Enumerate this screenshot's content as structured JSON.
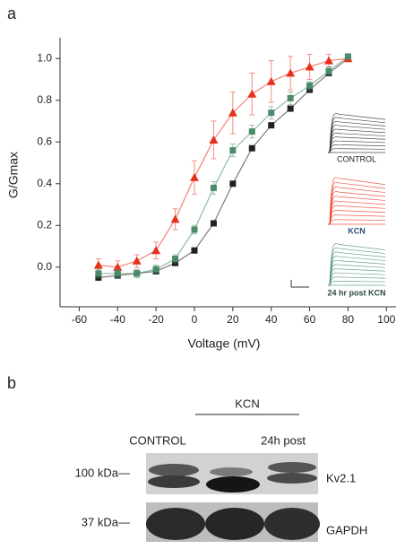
{
  "panel_a_label": "a",
  "chart_data": {
    "type": "line",
    "x_label": "Voltage (mV)",
    "y_label": "G/Gmax",
    "x": [
      -50,
      -40,
      -30,
      -20,
      -10,
      0,
      10,
      20,
      30,
      40,
      50,
      60,
      70,
      80
    ],
    "series": [
      {
        "name": "CONTROL",
        "color": "#222222",
        "marker": "square",
        "values": [
          -0.05,
          -0.04,
          -0.03,
          -0.02,
          0.02,
          0.08,
          0.21,
          0.4,
          0.57,
          0.68,
          0.76,
          0.85,
          0.93,
          1.0
        ],
        "errors": [
          0.01,
          0.01,
          0.01,
          0.01,
          0.01,
          0.01,
          0.01,
          0.01,
          0.01,
          0.01,
          0.01,
          0.01,
          0.01,
          0.01
        ]
      },
      {
        "name": "KCN",
        "color": "#e8301c",
        "marker": "triangle",
        "values": [
          0.01,
          0.0,
          0.03,
          0.08,
          0.23,
          0.43,
          0.61,
          0.74,
          0.83,
          0.89,
          0.93,
          0.96,
          0.99,
          1.0
        ],
        "errors": [
          0.03,
          0.03,
          0.03,
          0.04,
          0.05,
          0.08,
          0.09,
          0.1,
          0.1,
          0.1,
          0.08,
          0.06,
          0.03,
          0.01
        ]
      },
      {
        "name": "24 hr post KCN",
        "color": "#4a8c6a",
        "marker": "square",
        "values": [
          -0.03,
          -0.03,
          -0.03,
          -0.01,
          0.04,
          0.18,
          0.38,
          0.56,
          0.65,
          0.74,
          0.81,
          0.87,
          0.94,
          1.01
        ],
        "errors": [
          0.02,
          0.02,
          0.02,
          0.02,
          0.02,
          0.02,
          0.03,
          0.03,
          0.03,
          0.03,
          0.03,
          0.02,
          0.02,
          0.01
        ]
      }
    ],
    "xlim": [
      -70,
      105
    ],
    "xticks": [
      -60,
      -40,
      -20,
      0,
      20,
      40,
      60,
      80,
      100
    ],
    "ylim": [
      -0.19,
      1.1
    ],
    "yticks": [
      {
        "value": 0,
        "label": "0.0"
      },
      0.2,
      0.4,
      0.6,
      0.8,
      {
        "value": 1,
        "label": "1.0"
      }
    ]
  },
  "panel_b": {
    "label": "b",
    "group_label": "KCN",
    "lanes": [
      "CONTROL",
      "24h post"
    ],
    "markers": [
      "100 kDa—",
      "37 kDa—"
    ],
    "proteins": [
      "Kv2.1",
      "GAPDH"
    ]
  }
}
